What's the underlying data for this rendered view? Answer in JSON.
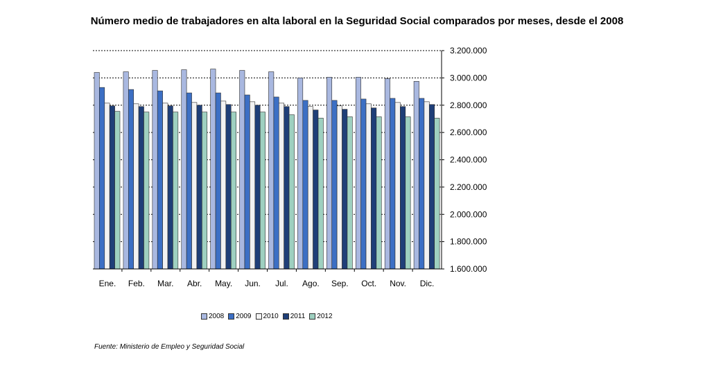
{
  "chart_data": {
    "type": "bar",
    "title": "Número medio de trabajadores en alta laboral en la Seguridad Social comparados por meses, desde el 2008",
    "categories": [
      "Ene.",
      "Feb.",
      "Mar.",
      "Abr.",
      "May.",
      "Jun.",
      "Jul.",
      "Ago.",
      "Sep.",
      "Oct.",
      "Nov.",
      "Dic."
    ],
    "series": [
      {
        "name": "2008",
        "color": "#a9b8e0",
        "values": [
          3040000,
          3045000,
          3055000,
          3060000,
          3065000,
          3055000,
          3045000,
          3000000,
          3005000,
          3005000,
          2995000,
          2975000
        ]
      },
      {
        "name": "2009",
        "color": "#3c6fc4",
        "values": [
          2930000,
          2915000,
          2905000,
          2890000,
          2890000,
          2875000,
          2860000,
          2835000,
          2835000,
          2845000,
          2850000,
          2850000
        ]
      },
      {
        "name": "2010",
        "color": "#f2f2f2",
        "values": [
          2815000,
          2810000,
          2815000,
          2820000,
          2830000,
          2825000,
          2815000,
          2790000,
          2795000,
          2810000,
          2820000,
          2825000
        ]
      },
      {
        "name": "2011",
        "color": "#1f3f78",
        "values": [
          2795000,
          2790000,
          2795000,
          2800000,
          2805000,
          2800000,
          2790000,
          2765000,
          2770000,
          2780000,
          2790000,
          2805000
        ]
      },
      {
        "name": "2012",
        "color": "#9ed0c0",
        "values": [
          2755000,
          2750000,
          2750000,
          2750000,
          2750000,
          2750000,
          2730000,
          2705000,
          2715000,
          2715000,
          2715000,
          2705000
        ]
      }
    ],
    "ylim": [
      1600000,
      3200000
    ],
    "yticks": [
      "1.600.000",
      "1.800.000",
      "2.000.000",
      "2.200.000",
      "2.400.000",
      "2.600.000",
      "2.800.000",
      "3.000.000",
      "3.200.000"
    ],
    "ytick_values": [
      1600000,
      1800000,
      2000000,
      2200000,
      2400000,
      2600000,
      2800000,
      3000000,
      3200000
    ],
    "grid": true,
    "legend_position": "bottom"
  },
  "source": "Fuente: Ministerio de Empleo y Seguridad Social"
}
